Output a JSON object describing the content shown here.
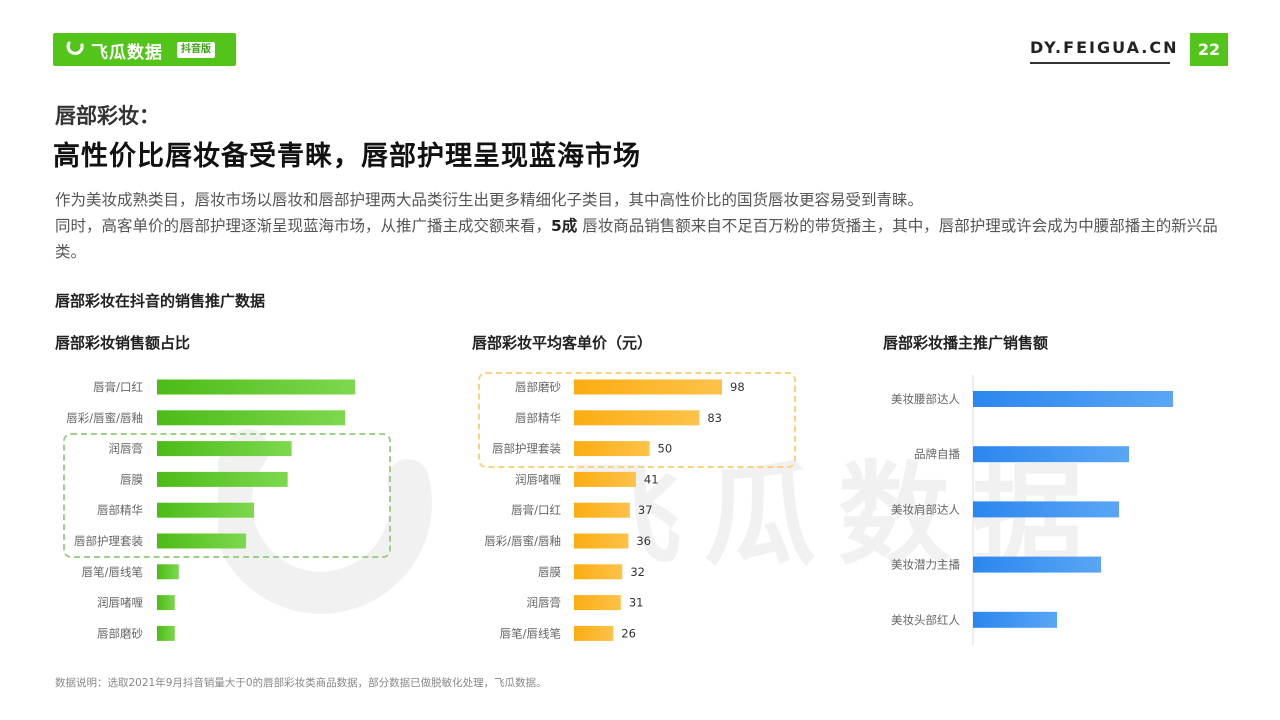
{
  "header": {
    "logo_text": "飞瓜数据",
    "logo_badge": "抖音版",
    "site_url": "DY.FEIGUA.CN",
    "page_number": "22"
  },
  "titles": {
    "subtitle": "唇部彩妆：",
    "main": "高性价比唇妆备受青睐，唇部护理呈现蓝海市场"
  },
  "description": {
    "line1": "作为美妆成熟类目，唇妆市场以唇妆和唇部护理两大品类衍生出更多精细化子类目，其中高性价比的国货唇妆更容易受到青睐。",
    "line2_pre": "同时，高客单价的唇部护理逐渐呈现蓝海市场，从推广播主成交额来看，",
    "line2_bold": "5成",
    "line2_post": " 唇妆商品销售额来自不足百万粉的带货播主，其中，唇部护理或许会成为中腰部播主的新兴品类。"
  },
  "section_title": "唇部彩妆在抖音的销售推广数据",
  "watermark": "飞瓜数据",
  "colors": {
    "brand_green": "#52c41a",
    "orange": "#fbb31d",
    "blue": "#2f8cf0"
  },
  "chart_data": [
    {
      "type": "bar",
      "title": "唇部彩妆销售额占比",
      "orientation": "horizontal",
      "categories": [
        "唇膏/口红",
        "唇彩/唇蜜/唇釉",
        "润唇膏",
        "唇膜",
        "唇部精华",
        "唇部护理套装",
        "唇笔/唇线笔",
        "润唇啫喱",
        "唇部磨砂"
      ],
      "values": [
        100,
        95,
        68,
        66,
        49,
        45,
        11,
        9,
        9
      ],
      "value_labels": false,
      "highlighted": [
        "润唇膏",
        "唇膜",
        "唇部精华",
        "唇部护理套装"
      ]
    },
    {
      "type": "bar",
      "title": "唇部彩妆平均客单价（元）",
      "orientation": "horizontal",
      "categories": [
        "唇部磨砂",
        "唇部精华",
        "唇部护理套装",
        "润唇啫喱",
        "唇膏/口红",
        "唇彩/唇蜜/唇釉",
        "唇膜",
        "润唇膏",
        "唇笔/唇线笔"
      ],
      "values": [
        98,
        83,
        50,
        41,
        37,
        36,
        32,
        31,
        26
      ],
      "value_labels": true,
      "highlighted": [
        "唇部磨砂",
        "唇部精华",
        "唇部护理套装"
      ]
    },
    {
      "type": "bar",
      "title": "唇部彩妆播主推广销售额",
      "orientation": "horizontal",
      "categories": [
        "美妆腰部达人",
        "品牌自播",
        "美妆肩部达人",
        "美妆潜力主播",
        "美妆头部红人"
      ],
      "values": [
        100,
        78,
        73,
        64,
        42
      ],
      "value_labels": false
    }
  ],
  "footnote": "数据说明：选取2021年9月抖音销量大于0的唇部彩妆类商品数据，部分数据已做脱敏化处理，飞瓜数据。"
}
